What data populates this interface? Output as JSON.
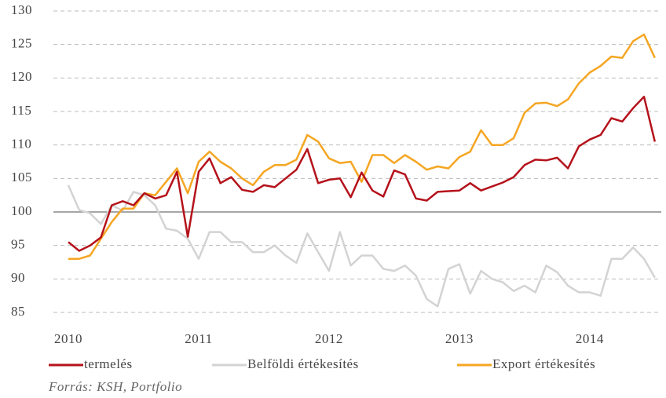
{
  "chart_data": {
    "type": "line",
    "categories": [
      "2010",
      null,
      null,
      null,
      null,
      null,
      null,
      null,
      null,
      null,
      null,
      null,
      "2011",
      null,
      null,
      null,
      null,
      null,
      null,
      null,
      null,
      null,
      null,
      null,
      "2012",
      null,
      null,
      null,
      null,
      null,
      null,
      null,
      null,
      null,
      null,
      null,
      "2013",
      null,
      null,
      null,
      null,
      null,
      null,
      null,
      null,
      null,
      null,
      null,
      "2014",
      null,
      null,
      null,
      null,
      null,
      null
    ],
    "series": [
      {
        "name": "termelés",
        "color": "#b5121b",
        "values": [
          95.5,
          94.2,
          95,
          96.2,
          101,
          101.6,
          101,
          102.8,
          102,
          102.5,
          106,
          96.3,
          106,
          108,
          104.3,
          105.2,
          103.3,
          103,
          104,
          103.7,
          105,
          106.3,
          109.4,
          104.3,
          104.8,
          105,
          102.2,
          105.9,
          103.2,
          102.3,
          106.2,
          105.6,
          102,
          101.7,
          103,
          103.1,
          103.2,
          104.3,
          103.2,
          103.8,
          104.4,
          105.2,
          107,
          107.8,
          107.7,
          108.1,
          106.5,
          109.8,
          110.8,
          111.5,
          114,
          113.5,
          115.5,
          117.2,
          110.5
        ]
      },
      {
        "name": "Belföldi értékesítés",
        "color": "#d3d3d3",
        "values": [
          104,
          100.3,
          99.8,
          98.2,
          101,
          100.2,
          103,
          102.5,
          101,
          97.5,
          97.2,
          96,
          93,
          97,
          97,
          95.5,
          95.5,
          94,
          94,
          95,
          93.5,
          92.4,
          96.8,
          94,
          91.2,
          97,
          92,
          93.5,
          93.5,
          91.5,
          91.2,
          92,
          90.5,
          87,
          85.9,
          91.5,
          92.2,
          87.8,
          91.2,
          90,
          89.5,
          88.2,
          89,
          88,
          92,
          91,
          89,
          88,
          88,
          87.5,
          93,
          93,
          94.7,
          93,
          90.2
        ]
      },
      {
        "name": "Export értékesítés",
        "color": "#f5a623",
        "values": [
          93,
          93,
          93.5,
          96,
          98.5,
          100.5,
          100.5,
          102.8,
          102.5,
          104.5,
          106.5,
          102.8,
          107.5,
          109,
          107.5,
          106.5,
          105,
          104,
          106,
          107,
          107,
          107.8,
          111.5,
          110.5,
          108,
          107.3,
          107.5,
          104.5,
          108.5,
          108.5,
          107.3,
          108.5,
          107.5,
          106.3,
          106.8,
          106.5,
          108.2,
          109,
          112.2,
          110,
          110,
          111,
          114.8,
          116.2,
          116.3,
          115.8,
          116.8,
          119.2,
          120.8,
          121.8,
          123.2,
          123,
          125.5,
          126.5,
          123
        ]
      }
    ],
    "ylim": [
      85,
      130
    ],
    "yticks": [
      85,
      90,
      95,
      100,
      105,
      110,
      115,
      120,
      125,
      130
    ],
    "hline": 100,
    "grid": true,
    "source": "Forrás: KSH, Portfolio"
  }
}
